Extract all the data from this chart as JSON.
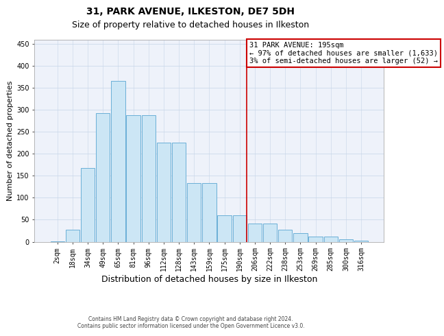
{
  "title1": "31, PARK AVENUE, ILKESTON, DE7 5DH",
  "title2": "Size of property relative to detached houses in Ilkeston",
  "xlabel": "Distribution of detached houses by size in Ilkeston",
  "ylabel": "Number of detached properties",
  "footer1": "Contains HM Land Registry data © Crown copyright and database right 2024.",
  "footer2": "Contains public sector information licensed under the Open Government Licence v3.0.",
  "categories": [
    "2sqm",
    "18sqm",
    "34sqm",
    "49sqm",
    "65sqm",
    "81sqm",
    "96sqm",
    "112sqm",
    "128sqm",
    "143sqm",
    "159sqm",
    "175sqm",
    "190sqm",
    "206sqm",
    "222sqm",
    "238sqm",
    "253sqm",
    "269sqm",
    "285sqm",
    "300sqm",
    "316sqm"
  ],
  "values": [
    1,
    28,
    167,
    292,
    365,
    287,
    287,
    226,
    226,
    134,
    134,
    60,
    60,
    42,
    42,
    28,
    20,
    12,
    11,
    5,
    2
  ],
  "bar_color": "#cce6f5",
  "bar_edge_color": "#6aafd6",
  "vline_color": "#cc0000",
  "vline_x_index": 12.48,
  "annotation_lines": [
    "31 PARK AVENUE: 195sqm",
    "← 97% of detached houses are smaller (1,633)",
    "3% of semi-detached houses are larger (52) →"
  ],
  "ylim": [
    0,
    460
  ],
  "yticks": [
    0,
    50,
    100,
    150,
    200,
    250,
    300,
    350,
    400,
    450
  ],
  "grid_color": "#c5d5e8",
  "bg_color": "#eef2fa",
  "title1_fontsize": 10,
  "title2_fontsize": 9,
  "xlabel_fontsize": 9,
  "ylabel_fontsize": 8,
  "tick_fontsize": 7,
  "footer_fontsize": 5.5,
  "ann_fontsize": 7.5
}
